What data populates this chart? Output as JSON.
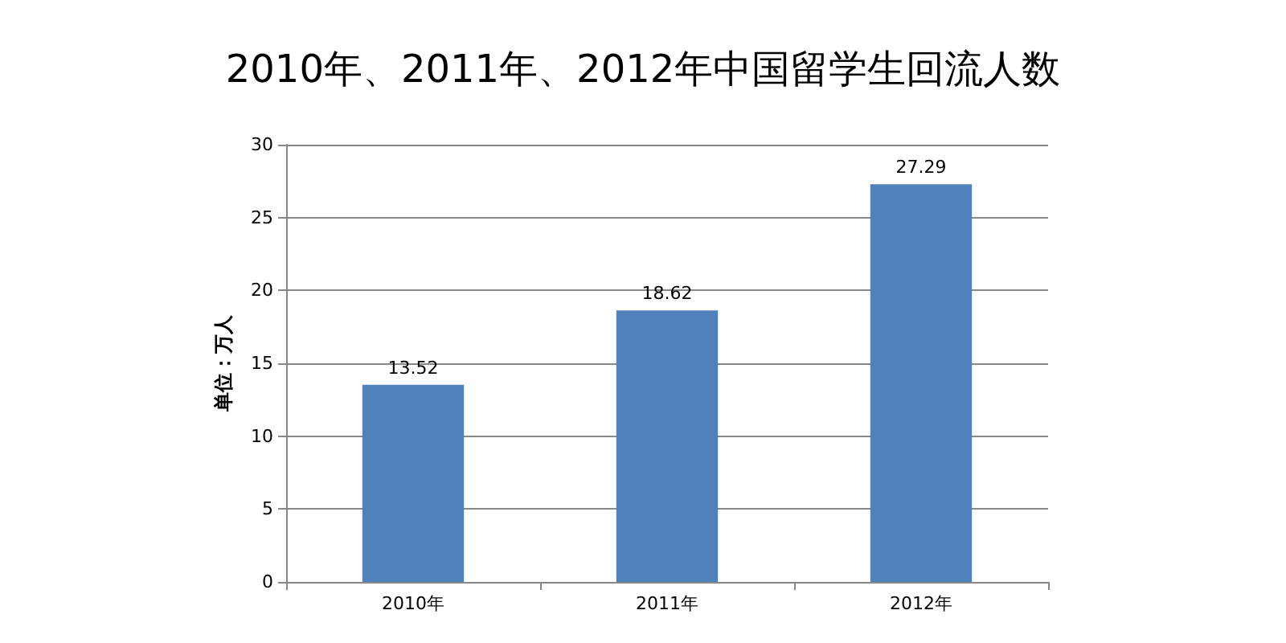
{
  "chart_data": {
    "type": "bar",
    "title": "2010年、2011年、2012年中国留学生回流人数",
    "ylabel": "单位：万人",
    "categories": [
      "2010年",
      "2011年",
      "2012年"
    ],
    "values": [
      13.52,
      18.62,
      27.29
    ],
    "color": "#4f81bd",
    "ylim": [
      0,
      30
    ],
    "yticks": [
      0,
      5,
      10,
      15,
      20,
      25,
      30
    ],
    "grid": "y",
    "data_labels": true
  }
}
